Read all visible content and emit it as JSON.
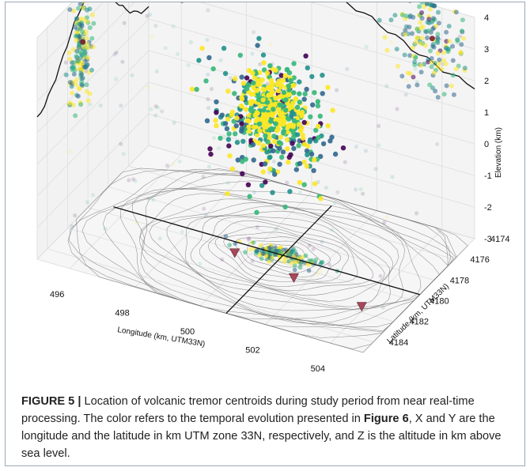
{
  "figure": {
    "label": "FIGURE 5 |",
    "caption_part1": " Location of volcanic tremor centroids during study period from near real-time processing. The color refers to the temporal evolution presented in ",
    "caption_ref": "Figure 6",
    "caption_part2": ", X and Y are the longitude and the latitude in km UTM zone 33N, respectively, and Z is the altitude in km above sea level."
  },
  "chart_data": {
    "type": "scatter",
    "projection": "3d",
    "xlabel": "Longitude (km, UTM33N)",
    "ylabel": "Latitude (km, UTM33N)",
    "zlabel": "Elevation (km)",
    "x_ticks": [
      "496",
      "498",
      "500",
      "502",
      "504"
    ],
    "y_ticks": [
      "4174",
      "4176",
      "4178",
      "4180",
      "4182",
      "4184"
    ],
    "z_ticks": [
      "-3",
      "-2",
      "-1",
      "0",
      "1",
      "2",
      "3",
      "4"
    ],
    "xlim": [
      495,
      505
    ],
    "ylim": [
      4174,
      4185
    ],
    "zlim": [
      -3,
      4
    ],
    "grid": true,
    "colormap": [
      "#440154",
      "#31688e",
      "#21918c",
      "#35b779",
      "#fde725"
    ],
    "marker_triangle_color": "#a8465a",
    "cross_center": {
      "x": 500.8,
      "y": 4179.4
    },
    "clusters": [
      {
        "name": "main",
        "x": 500.5,
        "y": 4179.5,
        "z": 1.2,
        "spread": [
          0.9,
          0.9,
          0.9
        ],
        "count": 340
      },
      {
        "name": "xz-projection",
        "plane": "back-x",
        "x": 496.0,
        "z": 2.2,
        "count": 160
      },
      {
        "name": "yz-projection",
        "plane": "back-y",
        "y": 4180.8,
        "z": 2.9,
        "count": 160
      },
      {
        "name": "xy-projection",
        "plane": "floor",
        "x": 500.8,
        "y": 4179.4,
        "count": 150
      }
    ],
    "triangles": [
      {
        "x": 499.6,
        "y": 4180.3
      },
      {
        "x": 501.6,
        "y": 4180.9
      },
      {
        "x": 503.9,
        "y": 4181.6
      }
    ]
  }
}
